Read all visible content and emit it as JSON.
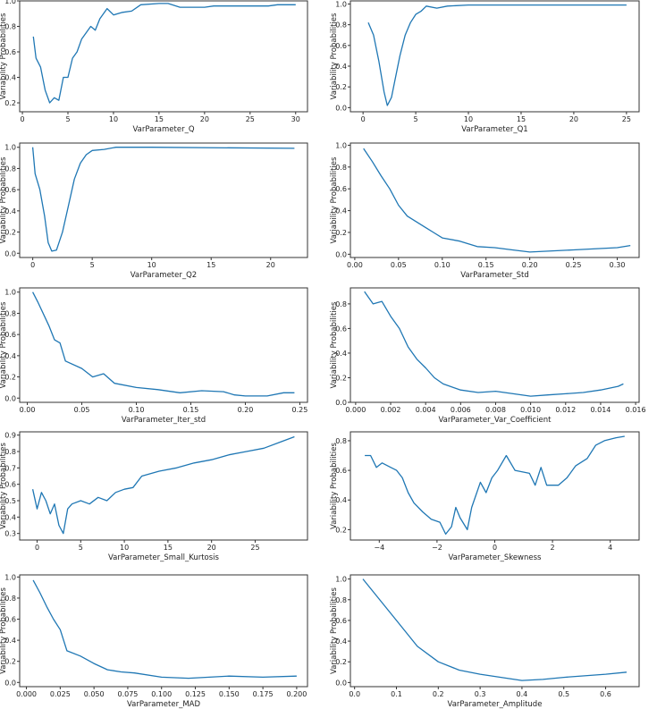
{
  "chart_data": [
    {
      "type": "line",
      "xlabel": "VarParameter_Q",
      "ylabel": "Variability Probabilities",
      "xlim": [
        -0.3,
        31.3
      ],
      "ylim": [
        0.13,
        1.0
      ],
      "xticks": [
        0,
        5,
        10,
        15,
        20,
        25,
        30
      ],
      "xtick_labels": [
        "0",
        "5",
        "10",
        "15",
        "20",
        "25",
        "30"
      ],
      "yticks": [
        0.2,
        0.4,
        0.6,
        0.8,
        1.0
      ],
      "ytick_labels": [
        "0.2",
        "0.4",
        "0.6",
        "0.8",
        "1.0"
      ],
      "x": [
        1.2,
        1.5,
        2,
        2.5,
        3,
        3.5,
        4,
        4.5,
        5,
        5.5,
        6,
        6.5,
        7,
        7.5,
        8,
        8.5,
        9.3,
        10,
        11,
        12,
        13,
        15,
        16,
        17.3,
        20,
        21,
        27,
        28,
        30
      ],
      "y": [
        0.72,
        0.55,
        0.48,
        0.3,
        0.2,
        0.24,
        0.22,
        0.4,
        0.4,
        0.55,
        0.6,
        0.7,
        0.75,
        0.8,
        0.77,
        0.86,
        0.94,
        0.89,
        0.91,
        0.92,
        0.97,
        0.98,
        0.98,
        0.95,
        0.95,
        0.96,
        0.96,
        0.97,
        0.97
      ]
    },
    {
      "type": "line",
      "xlabel": "VarParameter_Q1",
      "ylabel": "Variability Probabilities",
      "xlim": [
        -1.2,
        26.2
      ],
      "ylim": [
        -0.04,
        1.03
      ],
      "xticks": [
        0,
        5,
        10,
        15,
        20,
        25
      ],
      "xtick_labels": [
        "0",
        "5",
        "10",
        "15",
        "20",
        "25"
      ],
      "yticks": [
        0,
        0.2,
        0.4,
        0.6,
        0.8,
        1.0
      ],
      "ytick_labels": [
        "0.0",
        "0.2",
        "0.4",
        "0.6",
        "0.8",
        "1.0"
      ],
      "x": [
        0.5,
        1,
        1.5,
        2,
        2.3,
        2.7,
        3,
        3.5,
        4,
        4.5,
        5,
        5.5,
        6,
        7,
        8,
        10,
        25
      ],
      "y": [
        0.82,
        0.7,
        0.45,
        0.15,
        0.02,
        0.1,
        0.25,
        0.5,
        0.7,
        0.82,
        0.9,
        0.93,
        0.98,
        0.96,
        0.98,
        0.99,
        0.99
      ]
    },
    {
      "type": "line",
      "xlabel": "VarParameter_Q2",
      "ylabel": "Variability Probabilities",
      "xlim": [
        -1.1,
        23.1
      ],
      "ylim": [
        -0.04,
        1.04
      ],
      "xticks": [
        0,
        5,
        10,
        15,
        20
      ],
      "xtick_labels": [
        "0",
        "5",
        "10",
        "15",
        "20"
      ],
      "yticks": [
        0,
        0.2,
        0.4,
        0.6,
        0.8,
        1.0
      ],
      "ytick_labels": [
        "0.0",
        "0.2",
        "0.4",
        "0.6",
        "0.8",
        "1.0"
      ],
      "x": [
        0,
        0.2,
        0.6,
        1,
        1.3,
        1.6,
        2,
        2.5,
        3,
        3.5,
        4,
        4.5,
        5,
        6,
        7,
        10,
        22
      ],
      "y": [
        1,
        0.75,
        0.6,
        0.35,
        0.1,
        0.02,
        0.03,
        0.2,
        0.45,
        0.7,
        0.85,
        0.93,
        0.97,
        0.98,
        1,
        1,
        0.99
      ]
    },
    {
      "type": "line",
      "xlabel": "VarParameter_Std",
      "ylabel": "Variability Probabilities",
      "xlim": [
        -0.005,
        0.325
      ],
      "ylim": [
        -0.03,
        1.02
      ],
      "xticks": [
        0,
        0.05,
        0.1,
        0.15,
        0.2,
        0.25,
        0.3
      ],
      "xtick_labels": [
        "0.00",
        "0.05",
        "0.10",
        "0.15",
        "0.20",
        "0.25",
        "0.30"
      ],
      "yticks": [
        0,
        0.2,
        0.4,
        0.6,
        0.8,
        1.0
      ],
      "ytick_labels": [
        "0.0",
        "0.2",
        "0.4",
        "0.6",
        "0.8",
        "1.0"
      ],
      "x": [
        0.01,
        0.02,
        0.03,
        0.04,
        0.05,
        0.06,
        0.07,
        0.08,
        0.09,
        0.1,
        0.12,
        0.14,
        0.16,
        0.18,
        0.2,
        0.25,
        0.3,
        0.315
      ],
      "y": [
        0.97,
        0.85,
        0.72,
        0.6,
        0.45,
        0.35,
        0.3,
        0.25,
        0.2,
        0.15,
        0.12,
        0.07,
        0.06,
        0.04,
        0.02,
        0.04,
        0.06,
        0.08
      ]
    },
    {
      "type": "line",
      "xlabel": "VarParameter_Iter_std",
      "ylabel": "Variability Probabilities",
      "xlim": [
        -0.007,
        0.257
      ],
      "ylim": [
        -0.04,
        1.04
      ],
      "xticks": [
        0,
        0.05,
        0.1,
        0.15,
        0.2,
        0.25
      ],
      "xtick_labels": [
        "0.00",
        "0.05",
        "0.10",
        "0.15",
        "0.20",
        "0.25"
      ],
      "yticks": [
        0,
        0.2,
        0.4,
        0.6,
        0.8,
        1.0
      ],
      "ytick_labels": [
        "0.0",
        "0.2",
        "0.4",
        "0.6",
        "0.8",
        "1.0"
      ],
      "x": [
        0.005,
        0.01,
        0.02,
        0.025,
        0.03,
        0.035,
        0.05,
        0.06,
        0.07,
        0.08,
        0.1,
        0.12,
        0.14,
        0.16,
        0.18,
        0.19,
        0.2,
        0.22,
        0.235,
        0.245
      ],
      "y": [
        1,
        0.9,
        0.68,
        0.55,
        0.52,
        0.35,
        0.28,
        0.2,
        0.23,
        0.14,
        0.1,
        0.08,
        0.05,
        0.07,
        0.06,
        0.03,
        0.02,
        0.02,
        0.05,
        0.05
      ]
    },
    {
      "type": "line",
      "xlabel": "VarParameter_Var_Coefficient",
      "ylabel": "Variability Probabilities",
      "xlim": [
        -0.0003,
        0.0162
      ],
      "ylim": [
        0.0,
        0.93
      ],
      "xticks": [
        0,
        0.002,
        0.004,
        0.006,
        0.008,
        0.01,
        0.012,
        0.014,
        0.016
      ],
      "xtick_labels": [
        "0.000",
        "0.002",
        "0.004",
        "0.006",
        "0.008",
        "0.010",
        "0.012",
        "0.014",
        "0.016"
      ],
      "yticks": [
        0,
        0.2,
        0.4,
        0.6,
        0.8
      ],
      "ytick_labels": [
        "0.0",
        "0.2",
        "0.4",
        "0.6",
        "0.8"
      ],
      "x": [
        0.0005,
        0.001,
        0.0015,
        0.002,
        0.0025,
        0.003,
        0.0035,
        0.004,
        0.0045,
        0.005,
        0.006,
        0.007,
        0.008,
        0.009,
        0.01,
        0.011,
        0.012,
        0.013,
        0.014,
        0.015,
        0.0153
      ],
      "y": [
        0.9,
        0.8,
        0.82,
        0.7,
        0.6,
        0.45,
        0.35,
        0.28,
        0.2,
        0.15,
        0.1,
        0.08,
        0.09,
        0.07,
        0.05,
        0.06,
        0.07,
        0.08,
        0.1,
        0.13,
        0.15
      ]
    },
    {
      "type": "line",
      "xlabel": "VarParameter_Small_Kurtosis",
      "ylabel": "Variability Probabilities",
      "xlim": [
        -2,
        31
      ],
      "ylim": [
        0.26,
        0.92
      ],
      "xticks": [
        0,
        5,
        10,
        15,
        20,
        25
      ],
      "xtick_labels": [
        "0",
        "5",
        "10",
        "15",
        "20",
        "25"
      ],
      "yticks": [
        0.3,
        0.4,
        0.5,
        0.6,
        0.7,
        0.8,
        0.9
      ],
      "ytick_labels": [
        "0.3",
        "0.4",
        "0.5",
        "0.6",
        "0.7",
        "0.8",
        "0.9"
      ],
      "x": [
        -0.5,
        0,
        0.5,
        1,
        1.5,
        2,
        2.5,
        3,
        3.5,
        4,
        5,
        6,
        7,
        8,
        9,
        10,
        11,
        12,
        14,
        16,
        18,
        20,
        22,
        24,
        26,
        28,
        29.5
      ],
      "y": [
        0.57,
        0.45,
        0.55,
        0.5,
        0.42,
        0.48,
        0.35,
        0.3,
        0.45,
        0.48,
        0.5,
        0.48,
        0.52,
        0.5,
        0.55,
        0.57,
        0.58,
        0.65,
        0.68,
        0.7,
        0.73,
        0.75,
        0.78,
        0.8,
        0.82,
        0.86,
        0.89
      ]
    },
    {
      "type": "line",
      "xlabel": "VarParameter_Skewness",
      "ylabel": "Variability Probabilities",
      "xlim": [
        -5,
        5
      ],
      "ylim": [
        0.13,
        0.86
      ],
      "xticks": [
        -4,
        -2,
        0,
        2,
        4
      ],
      "xtick_labels": [
        "−4",
        "−2",
        "0",
        "2",
        "4"
      ],
      "yticks": [
        0.2,
        0.4,
        0.6,
        0.8
      ],
      "ytick_labels": [
        "0.2",
        "0.4",
        "0.6",
        "0.8"
      ],
      "x": [
        -4.5,
        -4.3,
        -4.1,
        -3.9,
        -3.6,
        -3.4,
        -3.2,
        -3.0,
        -2.8,
        -2.5,
        -2.2,
        -1.9,
        -1.7,
        -1.5,
        -1.35,
        -1.2,
        -0.95,
        -0.8,
        -0.5,
        -0.3,
        -0.1,
        0.1,
        0.4,
        0.7,
        1.2,
        1.4,
        1.6,
        1.8,
        2.2,
        2.5,
        2.8,
        3.2,
        3.5,
        3.8,
        4.2,
        4.5
      ],
      "y": [
        0.7,
        0.7,
        0.62,
        0.65,
        0.62,
        0.6,
        0.55,
        0.45,
        0.38,
        0.32,
        0.27,
        0.25,
        0.17,
        0.22,
        0.35,
        0.28,
        0.2,
        0.35,
        0.52,
        0.45,
        0.55,
        0.6,
        0.7,
        0.6,
        0.58,
        0.5,
        0.62,
        0.5,
        0.5,
        0.55,
        0.63,
        0.68,
        0.77,
        0.8,
        0.82,
        0.83
      ]
    },
    {
      "type": "line",
      "xlabel": "VarParameter_MAD",
      "ylabel": "Variability Probabilities",
      "xlim": [
        -0.005,
        0.208
      ],
      "ylim": [
        -0.04,
        1.02
      ],
      "xticks": [
        0,
        0.025,
        0.05,
        0.075,
        0.1,
        0.125,
        0.15,
        0.175,
        0.2
      ],
      "xtick_labels": [
        "0.000",
        "0.025",
        "0.050",
        "0.075",
        "0.100",
        "0.125",
        "0.150",
        "0.175",
        "0.200"
      ],
      "yticks": [
        0,
        0.2,
        0.4,
        0.6,
        0.8,
        1.0
      ],
      "ytick_labels": [
        "0.0",
        "0.2",
        "0.4",
        "0.6",
        "0.8",
        "1.0"
      ],
      "x": [
        0.005,
        0.01,
        0.015,
        0.02,
        0.025,
        0.03,
        0.04,
        0.05,
        0.06,
        0.07,
        0.08,
        0.1,
        0.12,
        0.15,
        0.175,
        0.2
      ],
      "y": [
        0.97,
        0.85,
        0.72,
        0.6,
        0.5,
        0.3,
        0.25,
        0.18,
        0.12,
        0.1,
        0.09,
        0.05,
        0.04,
        0.06,
        0.05,
        0.06
      ]
    },
    {
      "type": "line",
      "xlabel": "VarParameter_Amplitude",
      "ylabel": "Variability Probabilities",
      "xlim": [
        -0.01,
        0.68
      ],
      "ylim": [
        -0.04,
        1.04
      ],
      "xticks": [
        0,
        0.1,
        0.2,
        0.3,
        0.4,
        0.5,
        0.6
      ],
      "xtick_labels": [
        "0.0",
        "0.1",
        "0.2",
        "0.3",
        "0.4",
        "0.5",
        "0.6"
      ],
      "yticks": [
        0,
        0.2,
        0.4,
        0.6,
        0.8,
        1.0
      ],
      "ytick_labels": [
        "0.0",
        "0.2",
        "0.4",
        "0.6",
        "0.8",
        "1.0"
      ],
      "x": [
        0.02,
        0.05,
        0.1,
        0.15,
        0.2,
        0.25,
        0.3,
        0.35,
        0.4,
        0.45,
        0.5,
        0.6,
        0.65
      ],
      "y": [
        1,
        0.85,
        0.6,
        0.35,
        0.2,
        0.12,
        0.08,
        0.05,
        0.02,
        0.03,
        0.05,
        0.08,
        0.1
      ]
    }
  ],
  "colors": {
    "line": "#1f77b4",
    "axes": "#333333"
  }
}
